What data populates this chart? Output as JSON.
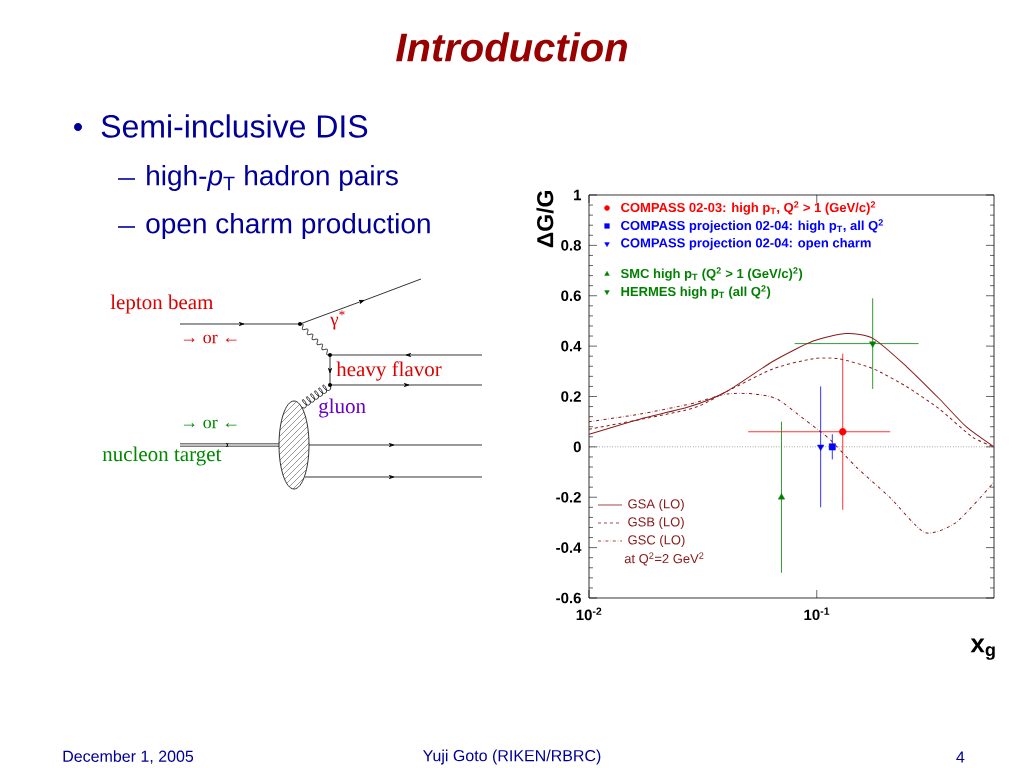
{
  "chart_data": {
    "type": "scatter",
    "title": "Introduction",
    "xlabel": "x$_{g}$",
    "ylabel": "ΔG/G",
    "log": "x",
    "xlim": [
      0.01,
      0.6
    ],
    "ylim": [
      -0.6,
      1
    ],
    "xticks": [
      {
        "value": 0.01,
        "label": "10$^{-2}$"
      },
      {
        "value": 0.1,
        "label": "10$^{-1}$"
      }
    ],
    "yticks": [
      -0.6,
      -0.4,
      -0.2,
      0,
      0.2,
      0.4,
      0.6,
      0.8,
      1
    ],
    "legend": "top left",
    "ref_lines": [
      {
        "axis": "y",
        "value": 0,
        "line_style": "dotted",
        "color": "#000000"
      }
    ],
    "series": [
      {
        "name": "COMPASS 02-03: high p$_{T}$, Q$^{2}$ > 1 (GeV/c)$^{2}$",
        "color": "#ff0000",
        "marker": "circle",
        "x": [
          0.13
        ],
        "values": [
          0.06
        ],
        "errors": [
          [
            -0.25,
            0.37
          ]
        ],
        "xerrors": [
          [
            0.05,
            0.21
          ]
        ]
      },
      {
        "name": "COMPASS projection 02-04: high p$_{T}$, all Q$^{2}$",
        "color": "#0000ff",
        "marker": "square",
        "x": [
          0.117
        ],
        "values": [
          0
        ],
        "errors": [
          0.05
        ]
      },
      {
        "name": "COMPASS projection 02-04: open charm",
        "color": "#0000ff",
        "marker": "triangle-down",
        "x": [
          0.104
        ],
        "values": [
          0
        ],
        "errors": [
          0.24
        ]
      },
      {
        "name": "SMC high p$_{T}$ (Q$^{2}$ > 1 (GeV/c)$^{2}$)",
        "color": "#008000",
        "marker": "triangle",
        "x": [
          0.07
        ],
        "values": [
          -0.2
        ],
        "errors": [
          [
            -0.5,
            0.1
          ]
        ]
      },
      {
        "name": "HERMES high p$_{T}$ (all Q$^{2}$)",
        "color": "#008000",
        "marker": "triangle-down",
        "x": [
          0.176
        ],
        "values": [
          0.41
        ],
        "errors": [
          [
            0.23,
            0.59
          ]
        ],
        "xerrors": [
          [
            0.08,
            0.28
          ]
        ]
      },
      {
        "type": "line",
        "name": "GSA (LO)",
        "color": "#8b1a1a",
        "line_style": "solid",
        "x": [
          0.01,
          0.0167,
          0.0277,
          0.0402,
          0.0643,
          0.0964,
          0.135,
          0.177,
          0.247,
          0.346,
          0.453,
          0.6
        ],
        "values": [
          0.05,
          0.11,
          0.16,
          0.22,
          0.34,
          0.42,
          0.45,
          0.43,
          0.32,
          0.19,
          0.08,
          0
        ]
      },
      {
        "type": "line",
        "name": "GSB (LO)",
        "color": "#8b1a1a",
        "line_style": "dashed",
        "x": [
          0.01,
          0.0277,
          0.0402,
          0.0643,
          0.0964,
          0.125,
          0.177,
          0.247,
          0.346,
          0.48,
          0.6
        ],
        "values": [
          0.07,
          0.15,
          0.22,
          0.31,
          0.35,
          0.35,
          0.31,
          0.24,
          0.15,
          0.04,
          0
        ]
      },
      {
        "type": "line",
        "name": "GSC (LO)",
        "color": "#8b1a1a",
        "line_style": "dashdot",
        "x": [
          0.01,
          0.0167,
          0.0277,
          0.0402,
          0.053,
          0.067,
          0.088,
          0.114,
          0.149,
          0.209,
          0.298,
          0.409,
          0.6
        ],
        "values": [
          0.1,
          0.13,
          0.17,
          0.21,
          0.21,
          0.19,
          0.11,
          0.03,
          -0.08,
          -0.2,
          -0.34,
          -0.3,
          -0.14
        ]
      }
    ],
    "annotations": [
      "Semi-inclusive DIS",
      "high-*p*$_{T}$ hadron pairs",
      "open charm production",
      "lepton beam",
      "→ or ←",
      "γ$^{*}$",
      "heavy flavor",
      "gluon",
      "→ or ←",
      "nucleon target",
      "at Q$^{2}$=2 GeV$^{2}$",
      "December 1, 2005",
      "Yuji Goto (RIKEN/RBRC)",
      "4"
    ]
  }
}
